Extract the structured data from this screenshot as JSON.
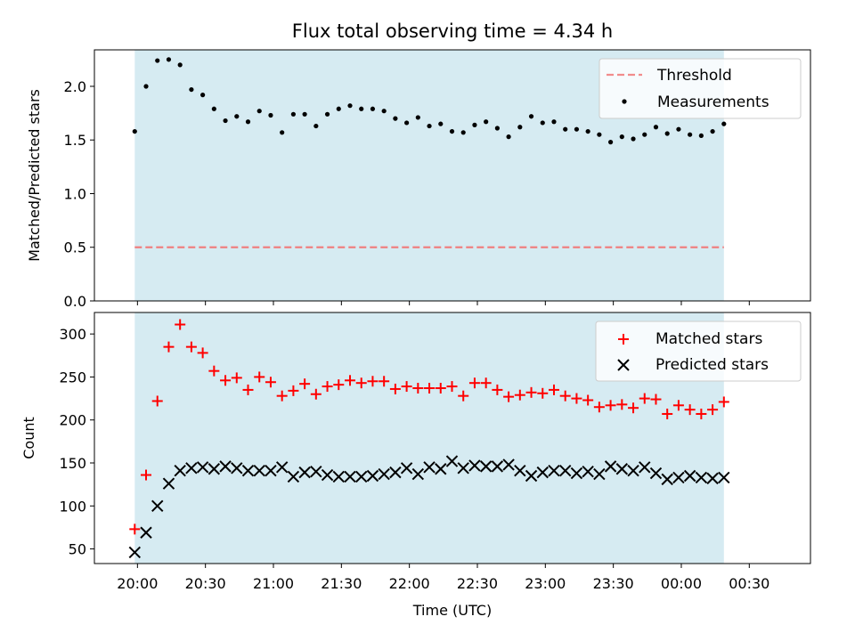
{
  "title": "Flux total observing time = 4.34 h",
  "x_axis": {
    "label": "Time (UTC)",
    "unit": "minutes after 20:00 UTC",
    "range": [
      -19,
      297
    ],
    "ticks": [
      {
        "value": 0,
        "label": "20:00"
      },
      {
        "value": 30,
        "label": "20:30"
      },
      {
        "value": 60,
        "label": "21:00"
      },
      {
        "value": 90,
        "label": "21:30"
      },
      {
        "value": 120,
        "label": "22:00"
      },
      {
        "value": 150,
        "label": "22:30"
      },
      {
        "value": 180,
        "label": "23:00"
      },
      {
        "value": 210,
        "label": "23:30"
      },
      {
        "value": 240,
        "label": "00:00"
      },
      {
        "value": 270,
        "label": "00:30"
      }
    ]
  },
  "colors": {
    "observing_span": "#add8e6",
    "threshold": "#f08080",
    "measurements": "#000000",
    "matched": "#ff0000",
    "predicted": "#000000"
  },
  "chart_data": [
    {
      "type": "scatter",
      "ylabel": "Matched/Predicted stars",
      "ylim": [
        0,
        2.34
      ],
      "yticks": [
        0,
        0.5,
        1.0,
        1.5,
        2.0
      ],
      "ytick_labels": [
        "0.0",
        "0.5",
        "1.0",
        "1.5",
        "2.0"
      ],
      "legend_position": "top-right",
      "shaded_span": [
        -1.2,
        258.8
      ],
      "threshold": {
        "name": "Threshold",
        "value": 0.5,
        "x_range": [
          -1.2,
          258.8
        ]
      },
      "series": [
        {
          "name": "Measurements",
          "x": [
            -1.2,
            3.8,
            8.8,
            13.8,
            18.8,
            23.8,
            28.8,
            33.8,
            38.8,
            43.8,
            48.8,
            53.8,
            58.8,
            63.8,
            68.8,
            73.8,
            78.8,
            83.8,
            88.8,
            93.8,
            98.8,
            103.8,
            108.8,
            113.8,
            118.8,
            123.8,
            128.8,
            133.8,
            138.8,
            143.8,
            148.8,
            153.8,
            158.8,
            163.8,
            168.8,
            173.8,
            178.8,
            183.8,
            188.8,
            193.8,
            198.8,
            203.8,
            208.8,
            213.8,
            218.8,
            223.8,
            228.8,
            233.8,
            238.8,
            243.8,
            248.8,
            253.8,
            258.8
          ],
          "y": [
            1.58,
            2.0,
            2.24,
            2.25,
            2.2,
            1.97,
            1.92,
            1.79,
            1.68,
            1.72,
            1.67,
            1.77,
            1.73,
            1.57,
            1.74,
            1.74,
            1.63,
            1.74,
            1.79,
            1.82,
            1.79,
            1.79,
            1.77,
            1.7,
            1.66,
            1.71,
            1.63,
            1.65,
            1.58,
            1.57,
            1.64,
            1.67,
            1.61,
            1.53,
            1.62,
            1.72,
            1.66,
            1.67,
            1.6,
            1.6,
            1.58,
            1.55,
            1.48,
            1.53,
            1.51,
            1.55,
            1.62,
            1.56,
            1.6,
            1.55,
            1.54,
            1.58,
            1.65
          ]
        }
      ]
    },
    {
      "type": "scatter",
      "ylabel": "Count",
      "ylim": [
        33,
        325
      ],
      "yticks": [
        50,
        100,
        150,
        200,
        250,
        300
      ],
      "ytick_labels": [
        "50",
        "100",
        "150",
        "200",
        "250",
        "300"
      ],
      "legend_position": "top-right",
      "shaded_span": [
        -1.2,
        258.8
      ],
      "x": [
        -1.2,
        3.8,
        8.8,
        13.8,
        18.8,
        23.8,
        28.8,
        33.8,
        38.8,
        43.8,
        48.8,
        53.8,
        58.8,
        63.8,
        68.8,
        73.8,
        78.8,
        83.8,
        88.8,
        93.8,
        98.8,
        103.8,
        108.8,
        113.8,
        118.8,
        123.8,
        128.8,
        133.8,
        138.8,
        143.8,
        148.8,
        153.8,
        158.8,
        163.8,
        168.8,
        173.8,
        178.8,
        183.8,
        188.8,
        193.8,
        198.8,
        203.8,
        208.8,
        213.8,
        218.8,
        223.8,
        228.8,
        233.8,
        238.8,
        243.8,
        248.8,
        253.8,
        258.8
      ],
      "series": [
        {
          "name": "Matched stars",
          "marker": "plus",
          "values": [
            73,
            136,
            222,
            285,
            311,
            285,
            278,
            257,
            246,
            249,
            235,
            250,
            244,
            228,
            234,
            242,
            230,
            239,
            241,
            246,
            243,
            245,
            245,
            236,
            239,
            237,
            237,
            237,
            239,
            228,
            243,
            243,
            235,
            227,
            229,
            232,
            231,
            235,
            228,
            225,
            223,
            215,
            217,
            218,
            214,
            225,
            224,
            207,
            217,
            212,
            207,
            212,
            221
          ]
        },
        {
          "name": "Predicted stars",
          "marker": "x",
          "values": [
            46,
            69,
            100,
            126,
            141,
            144,
            145,
            143,
            146,
            144,
            141,
            141,
            141,
            145,
            134,
            139,
            140,
            136,
            134,
            134,
            134,
            135,
            137,
            139,
            144,
            137,
            145,
            143,
            152,
            144,
            147,
            146,
            146,
            148,
            141,
            135,
            139,
            141,
            141,
            138,
            140,
            137,
            146,
            143,
            141,
            145,
            138,
            131,
            133,
            135,
            133,
            132,
            133
          ]
        }
      ]
    }
  ]
}
